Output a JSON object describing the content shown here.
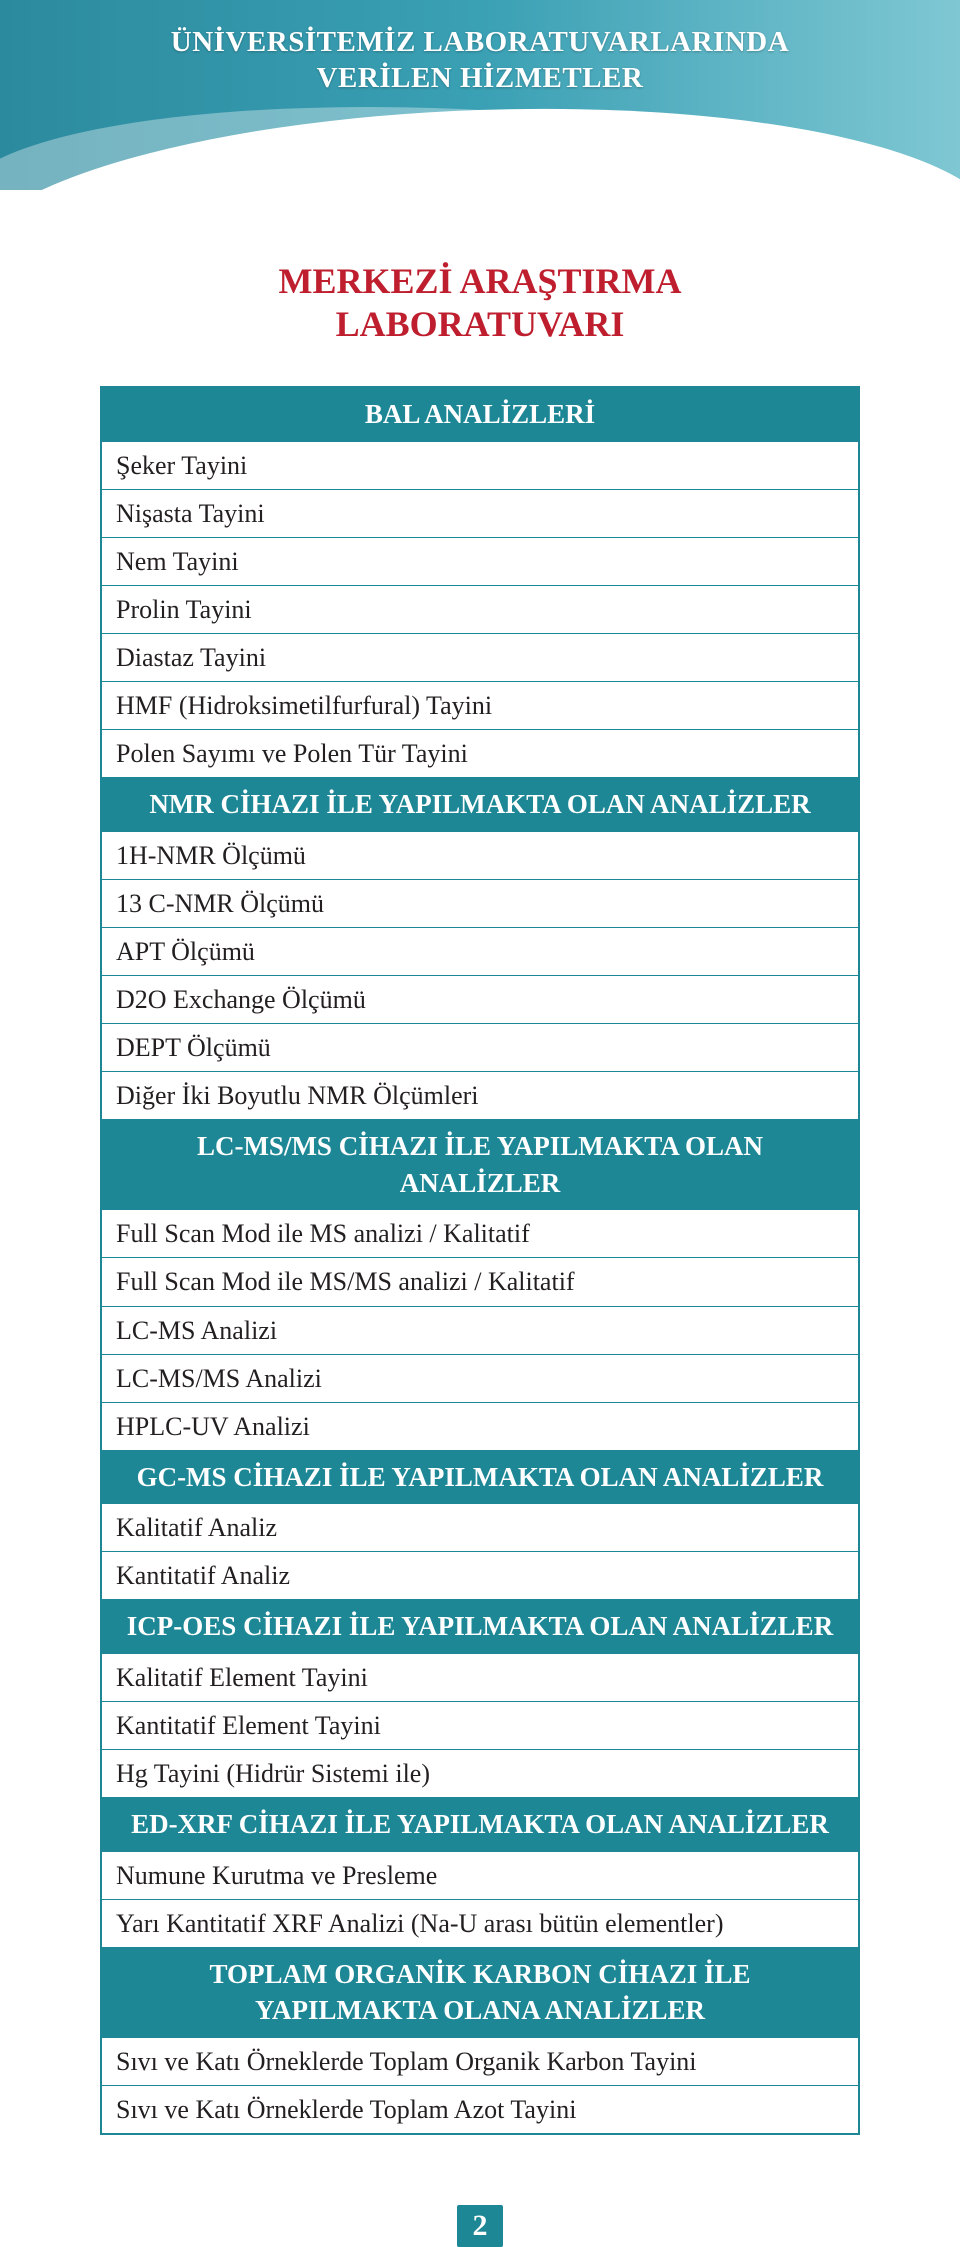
{
  "colors": {
    "teal": "#1d8796",
    "teal_light": "#7fc7d3",
    "red": "#be1e2d",
    "text": "#231f20",
    "white": "#ffffff"
  },
  "banner": {
    "line1": "ÜNİVERSİTEMİZ LABORATUVARLARINDA",
    "line2": "VERİLEN HİZMETLER"
  },
  "heading": {
    "line1": "MERKEZİ ARAŞTIRMA",
    "line2": "LABORATUVARI"
  },
  "table": {
    "rows": [
      {
        "type": "section",
        "text": "BAL ANALİZLERİ"
      },
      {
        "type": "row",
        "text": "Şeker Tayini"
      },
      {
        "type": "row",
        "text": "Nişasta Tayini"
      },
      {
        "type": "row",
        "text": "Nem Tayini"
      },
      {
        "type": "row",
        "text": "Prolin Tayini"
      },
      {
        "type": "row",
        "text": "Diastaz Tayini"
      },
      {
        "type": "row",
        "text": "HMF (Hidroksimetilfurfural) Tayini"
      },
      {
        "type": "row",
        "text": "Polen Sayımı ve Polen Tür Tayini"
      },
      {
        "type": "section",
        "text": "NMR CİHAZI İLE YAPILMAKTA OLAN ANALİZLER"
      },
      {
        "type": "row",
        "text": "1H-NMR Ölçümü"
      },
      {
        "type": "row",
        "text": "13 C-NMR Ölçümü"
      },
      {
        "type": "row",
        "text": "APT Ölçümü"
      },
      {
        "type": "row",
        "text": "D2O Exchange Ölçümü"
      },
      {
        "type": "row",
        "text": "DEPT Ölçümü"
      },
      {
        "type": "row",
        "text": "Diğer İki Boyutlu NMR Ölçümleri"
      },
      {
        "type": "section",
        "text": "LC-MS/MS CİHAZI İLE YAPILMAKTA OLAN ANALİZLER"
      },
      {
        "type": "row",
        "text": "Full Scan Mod ile MS analizi / Kalitatif"
      },
      {
        "type": "row",
        "text": "Full Scan Mod ile MS/MS analizi / Kalitatif"
      },
      {
        "type": "row",
        "text": "LC-MS Analizi"
      },
      {
        "type": "row",
        "text": "LC-MS/MS Analizi"
      },
      {
        "type": "row",
        "text": "HPLC-UV Analizi"
      },
      {
        "type": "section",
        "text": "GC-MS CİHAZI İLE YAPILMAKTA OLAN ANALİZLER"
      },
      {
        "type": "row",
        "text": "Kalitatif Analiz"
      },
      {
        "type": "row",
        "text": "Kantitatif Analiz"
      },
      {
        "type": "section",
        "text": "ICP-OES CİHAZI İLE YAPILMAKTA OLAN ANALİZLER"
      },
      {
        "type": "row",
        "text": "Kalitatif Element Tayini"
      },
      {
        "type": "row",
        "text": "Kantitatif Element Tayini"
      },
      {
        "type": "row",
        "text": "Hg Tayini (Hidrür Sistemi ile)"
      },
      {
        "type": "section",
        "text": "ED-XRF CİHAZI İLE YAPILMAKTA OLAN ANALİZLER"
      },
      {
        "type": "row",
        "text": "Numune Kurutma ve Presleme"
      },
      {
        "type": "row",
        "text": "Yarı Kantitatif XRF Analizi (Na-U arası bütün elementler)"
      },
      {
        "type": "section",
        "text": "TOPLAM ORGANİK KARBON CİHAZI İLE YAPILMAKTA OLANA ANALİZLER"
      },
      {
        "type": "row",
        "text": "Sıvı ve Katı Örneklerde Toplam Organik Karbon Tayini"
      },
      {
        "type": "row",
        "text": "Sıvı ve Katı Örneklerde Toplam Azot Tayini"
      }
    ]
  },
  "page_number": "2"
}
